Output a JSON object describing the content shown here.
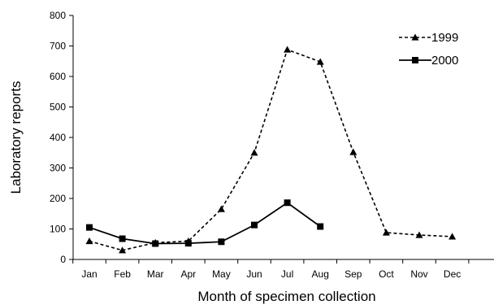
{
  "chart_data": {
    "type": "line",
    "xlabel": "Month of specimen collection",
    "ylabel": "Laboratory reports",
    "ylim": [
      0,
      800
    ],
    "yticks": [
      0,
      100,
      200,
      300,
      400,
      500,
      600,
      700,
      800
    ],
    "categories": [
      "Jan",
      "Feb",
      "Mar",
      "Apr",
      "May",
      "Jun",
      "Jul",
      "Aug",
      "Sep",
      "Oct",
      "Nov",
      "Dec"
    ],
    "grid": false,
    "legend_position": "top-right",
    "series": [
      {
        "name": "1999",
        "line_style": "dashed",
        "marker": "triangle",
        "values": [
          60,
          30,
          55,
          60,
          165,
          350,
          688,
          648,
          352,
          88,
          80,
          75
        ]
      },
      {
        "name": "2000",
        "line_style": "solid",
        "marker": "square",
        "values": [
          105,
          68,
          52,
          53,
          58,
          113,
          186,
          108,
          null,
          null,
          null,
          null
        ]
      }
    ]
  }
}
